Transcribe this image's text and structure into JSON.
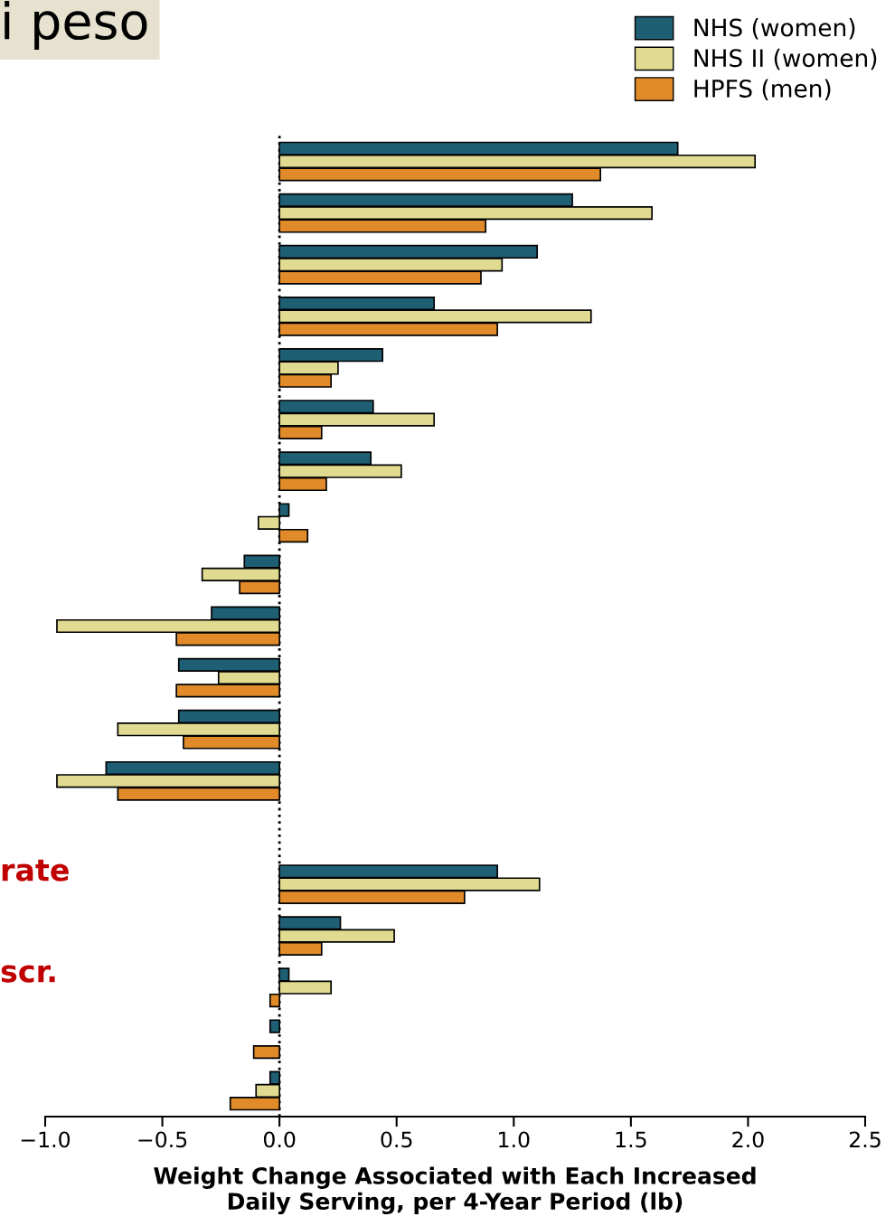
{
  "chart_data": {
    "type": "bar",
    "orientation": "horizontal",
    "title": "i peso",
    "xlabel": "Weight Change Associated with Each Increased\nDaily Serving, per 4-Year Period (lb)",
    "categories": [
      null,
      null,
      null,
      null,
      null,
      null,
      null,
      null,
      null,
      null,
      null,
      null,
      null,
      null,
      null,
      null,
      null,
      null,
      null
    ],
    "series": [
      {
        "name": "NHS (women)",
        "color": "#1f5f74",
        "values": [
          1.7,
          1.25,
          1.1,
          0.66,
          0.44,
          0.4,
          0.39,
          0.04,
          -0.15,
          -0.29,
          -0.43,
          -0.43,
          -0.74,
          null,
          0.93,
          0.26,
          0.04,
          -0.04,
          -0.04
        ]
      },
      {
        "name": "NHS II (women)",
        "color": "#e0db90",
        "values": [
          2.03,
          1.59,
          0.95,
          1.33,
          0.25,
          0.66,
          0.52,
          -0.09,
          -0.33,
          -0.95,
          -0.26,
          -0.69,
          -0.95,
          null,
          1.11,
          0.49,
          0.22,
          null,
          -0.1
        ]
      },
      {
        "name": "HPFS (men)",
        "color": "#e08a2a",
        "values": [
          1.37,
          0.88,
          0.86,
          0.93,
          0.22,
          0.18,
          0.2,
          0.12,
          -0.17,
          -0.44,
          -0.44,
          -0.41,
          -0.69,
          null,
          0.79,
          0.18,
          -0.04,
          -0.11,
          -0.21
        ]
      }
    ],
    "xlim": [
      -1.0,
      2.5
    ],
    "xticks": [
      {
        "value": -1.0,
        "label": "−1.0"
      },
      {
        "value": -0.5,
        "label": "−0.5"
      },
      {
        "value": 0.0,
        "label": "0.0"
      },
      {
        "value": 0.5,
        "label": "0.5"
      },
      {
        "value": 1.0,
        "label": "1.0"
      },
      {
        "value": 1.5,
        "label": "1.5"
      },
      {
        "value": 2.0,
        "label": "2.0"
      },
      {
        "value": 2.5,
        "label": "2.5"
      }
    ],
    "ref_lines": [
      {
        "axis": "x",
        "value": 0,
        "line_style": "dotted",
        "color": "#000000"
      }
    ],
    "annotations": [
      "rate",
      "scr."
    ],
    "legend": "top right",
    "grid": false,
    "tick_labels": "x"
  }
}
